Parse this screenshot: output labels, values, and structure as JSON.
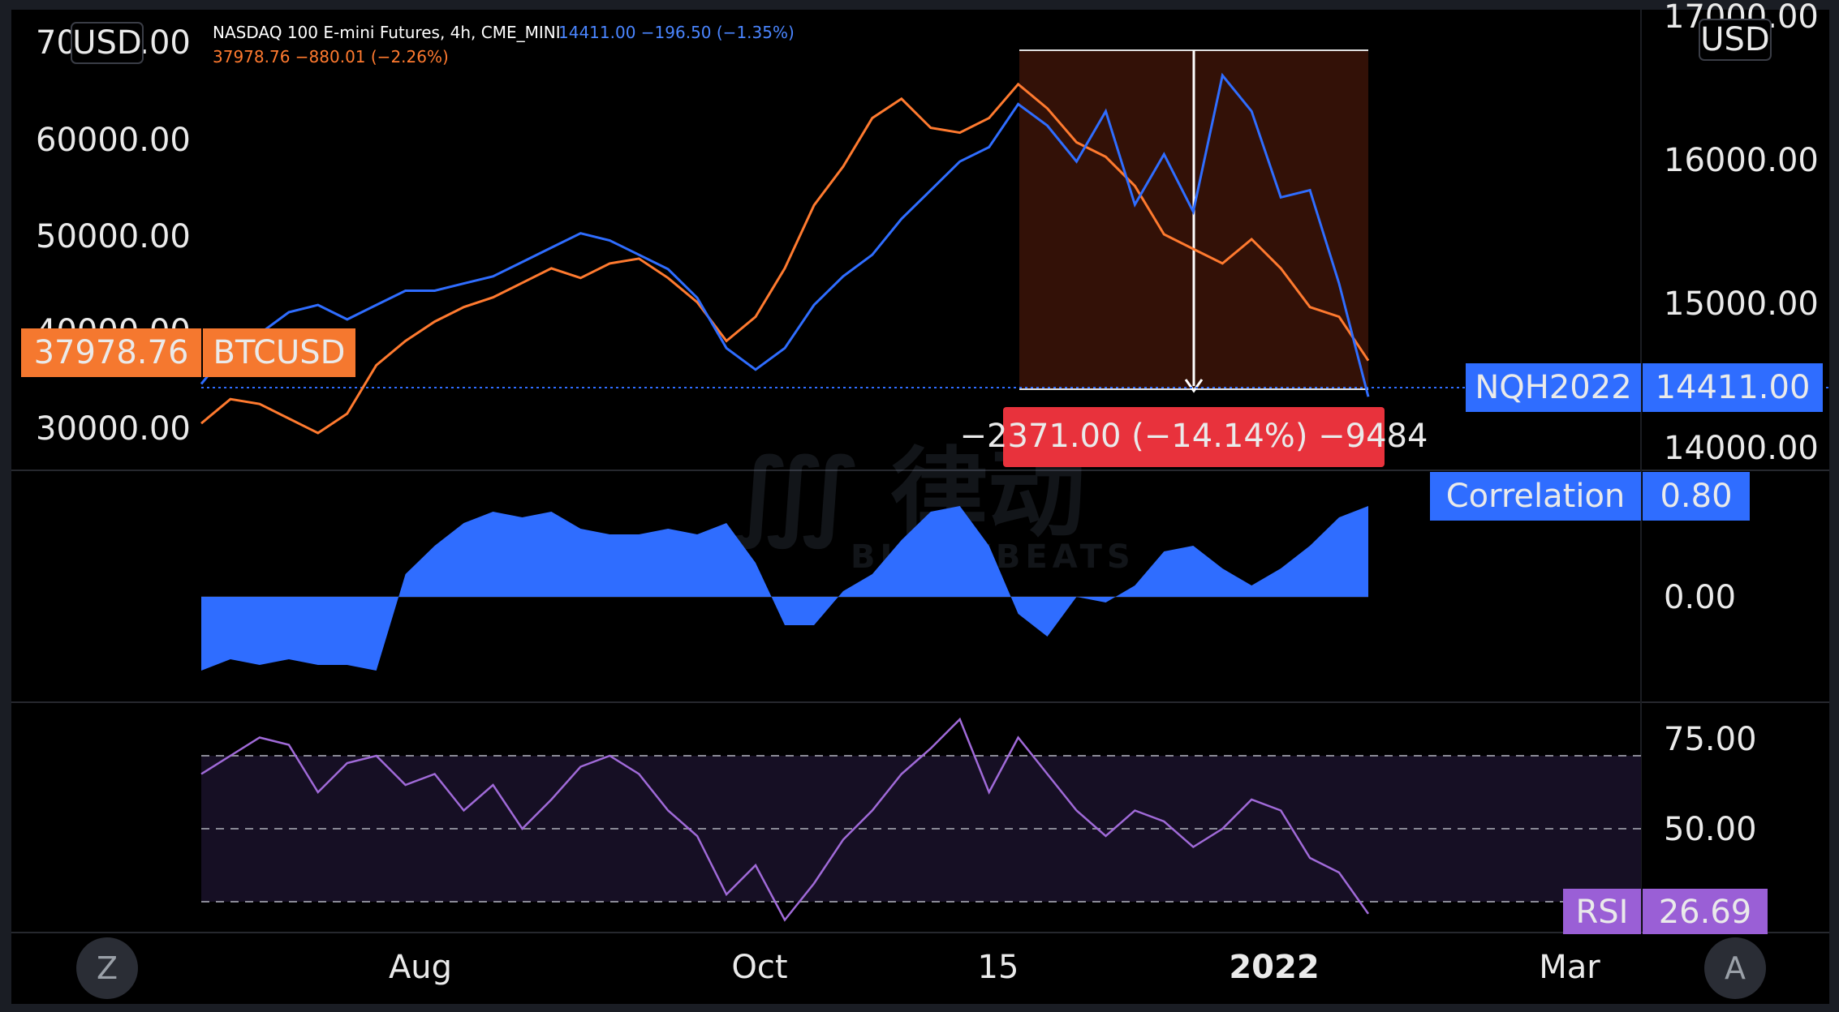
{
  "header": {
    "line1_name": "NASDAQ 100 E-mini Futures, 4h, CME_MINI",
    "line1_quote": "14411.00  −196.50 (−1.35%)",
    "line2_quote": "37978.76  −880.01 (−2.26%)"
  },
  "left_axis": {
    "currency": "USD",
    "tick_labels": [
      "70000.00",
      "60000.00",
      "50000.00",
      "40000.00",
      "30000.00"
    ],
    "price_label": "37978.76",
    "symbol_label": "BTCUSD"
  },
  "right_axis": {
    "currency": "USD",
    "tick_labels": [
      "17000.00",
      "16000.00",
      "15000.00",
      "14000.00"
    ],
    "price_label": "14411.00",
    "symbol_label": "NQH2022"
  },
  "measure": {
    "label": "−2371.00 (−14.14%) −9484"
  },
  "correlation": {
    "name": "Correlation",
    "value": "0.80",
    "zero_label": "0.00"
  },
  "rsi": {
    "name": "RSI",
    "value": "26.69",
    "levels": [
      "75.00",
      "50.00"
    ]
  },
  "time_axis": {
    "labels": [
      "Aug",
      "Oct",
      "15",
      "2022",
      "Mar"
    ]
  },
  "buttons": {
    "left": "Z",
    "right": "A"
  },
  "colors": {
    "btc": "#ff7a2f",
    "nasdaq": "#2f6dff",
    "correlation": "#2f6dff",
    "rsi": "#a06ad8",
    "measure": "#e8323c",
    "background": "#000000"
  },
  "chart_data": [
    {
      "type": "line",
      "title": "NASDAQ 100 E-mini Futures, 4h, CME_MINI",
      "x_ticks": [
        "Aug",
        "Oct",
        "15",
        "2022",
        "Mar"
      ],
      "series": [
        {
          "name": "BTCUSD",
          "axis": "left",
          "x": [
            0,
            25,
            50,
            75,
            100,
            125,
            150,
            175,
            200,
            225,
            250,
            275,
            300,
            325,
            350,
            375,
            400,
            425,
            450,
            475,
            500,
            525,
            550,
            575,
            600,
            625,
            650,
            675,
            700,
            725,
            750,
            775,
            800,
            825,
            850,
            875,
            900,
            925,
            950,
            975,
            1000
          ],
          "values": [
            31500,
            34000,
            33500,
            32000,
            30500,
            32500,
            37500,
            40000,
            42000,
            43500,
            44500,
            46000,
            47500,
            46500,
            48000,
            48500,
            46500,
            44000,
            40000,
            42500,
            47500,
            54000,
            58000,
            63000,
            65000,
            62000,
            61500,
            63000,
            66500,
            64000,
            60500,
            59000,
            56000,
            51000,
            49500,
            48000,
            50500,
            47500,
            43500,
            42500,
            37978.76
          ]
        },
        {
          "name": "NQH2022",
          "axis": "right",
          "x": [
            0,
            25,
            50,
            75,
            100,
            125,
            150,
            175,
            200,
            225,
            250,
            275,
            300,
            325,
            350,
            375,
            400,
            425,
            450,
            475,
            500,
            525,
            550,
            575,
            600,
            625,
            650,
            675,
            700,
            725,
            750,
            775,
            800,
            825,
            850,
            875,
            900,
            925,
            950,
            975,
            1000
          ],
          "values": [
            14500,
            14750,
            14850,
            15000,
            15050,
            14950,
            15050,
            15150,
            15150,
            15200,
            15250,
            15350,
            15450,
            15550,
            15500,
            15400,
            15300,
            15100,
            14750,
            14600,
            14750,
            15050,
            15250,
            15400,
            15650,
            15850,
            16050,
            16150,
            16450,
            16300,
            16050,
            16400,
            15750,
            16100,
            15700,
            16650,
            16400,
            15800,
            15850,
            15200,
            14411
          ]
        },
        {
          "name": "Correlation",
          "axis": "correlation",
          "x": [
            0,
            25,
            50,
            75,
            100,
            125,
            150,
            175,
            200,
            225,
            250,
            275,
            300,
            325,
            350,
            375,
            400,
            425,
            450,
            475,
            500,
            525,
            550,
            575,
            600,
            625,
            650,
            675,
            700,
            725,
            750,
            775,
            800,
            825,
            850,
            875,
            900,
            925,
            950,
            975,
            1000
          ],
          "values": [
            -0.65,
            -0.55,
            -0.6,
            -0.55,
            -0.6,
            -0.6,
            -0.65,
            0.2,
            0.45,
            0.65,
            0.75,
            0.7,
            0.75,
            0.6,
            0.55,
            0.55,
            0.6,
            0.55,
            0.65,
            0.3,
            -0.25,
            -0.25,
            0.05,
            0.2,
            0.5,
            0.75,
            0.8,
            0.45,
            -0.15,
            -0.35,
            0.0,
            -0.05,
            0.1,
            0.4,
            0.45,
            0.25,
            0.1,
            0.25,
            0.45,
            0.7,
            0.8
          ]
        },
        {
          "name": "RSI",
          "axis": "rsi",
          "x": [
            0,
            25,
            50,
            75,
            100,
            125,
            150,
            175,
            200,
            225,
            250,
            275,
            300,
            325,
            350,
            375,
            400,
            425,
            450,
            475,
            500,
            525,
            550,
            575,
            600,
            625,
            650,
            675,
            700,
            725,
            750,
            775,
            800,
            825,
            850,
            875,
            900,
            925,
            950,
            975,
            1000
          ],
          "values": [
            65,
            70,
            75,
            73,
            60,
            68,
            70,
            62,
            65,
            55,
            62,
            50,
            58,
            67,
            70,
            65,
            55,
            48,
            32,
            40,
            25,
            35,
            47,
            55,
            65,
            72,
            80,
            60,
            75,
            65,
            55,
            48,
            55,
            52,
            45,
            50,
            58,
            55,
            42,
            38,
            26.69
          ]
        }
      ],
      "ylim_left": [
        28000,
        71000
      ],
      "ylim_right": [
        13900,
        17000
      ],
      "ylim_correlation": [
        -1,
        1
      ],
      "ylim_rsi": [
        0,
        100
      ],
      "rsi_levels": [
        70,
        50,
        30
      ],
      "measure": {
        "change": -2371.0,
        "percent": -14.14,
        "bars": -9484
      }
    }
  ]
}
